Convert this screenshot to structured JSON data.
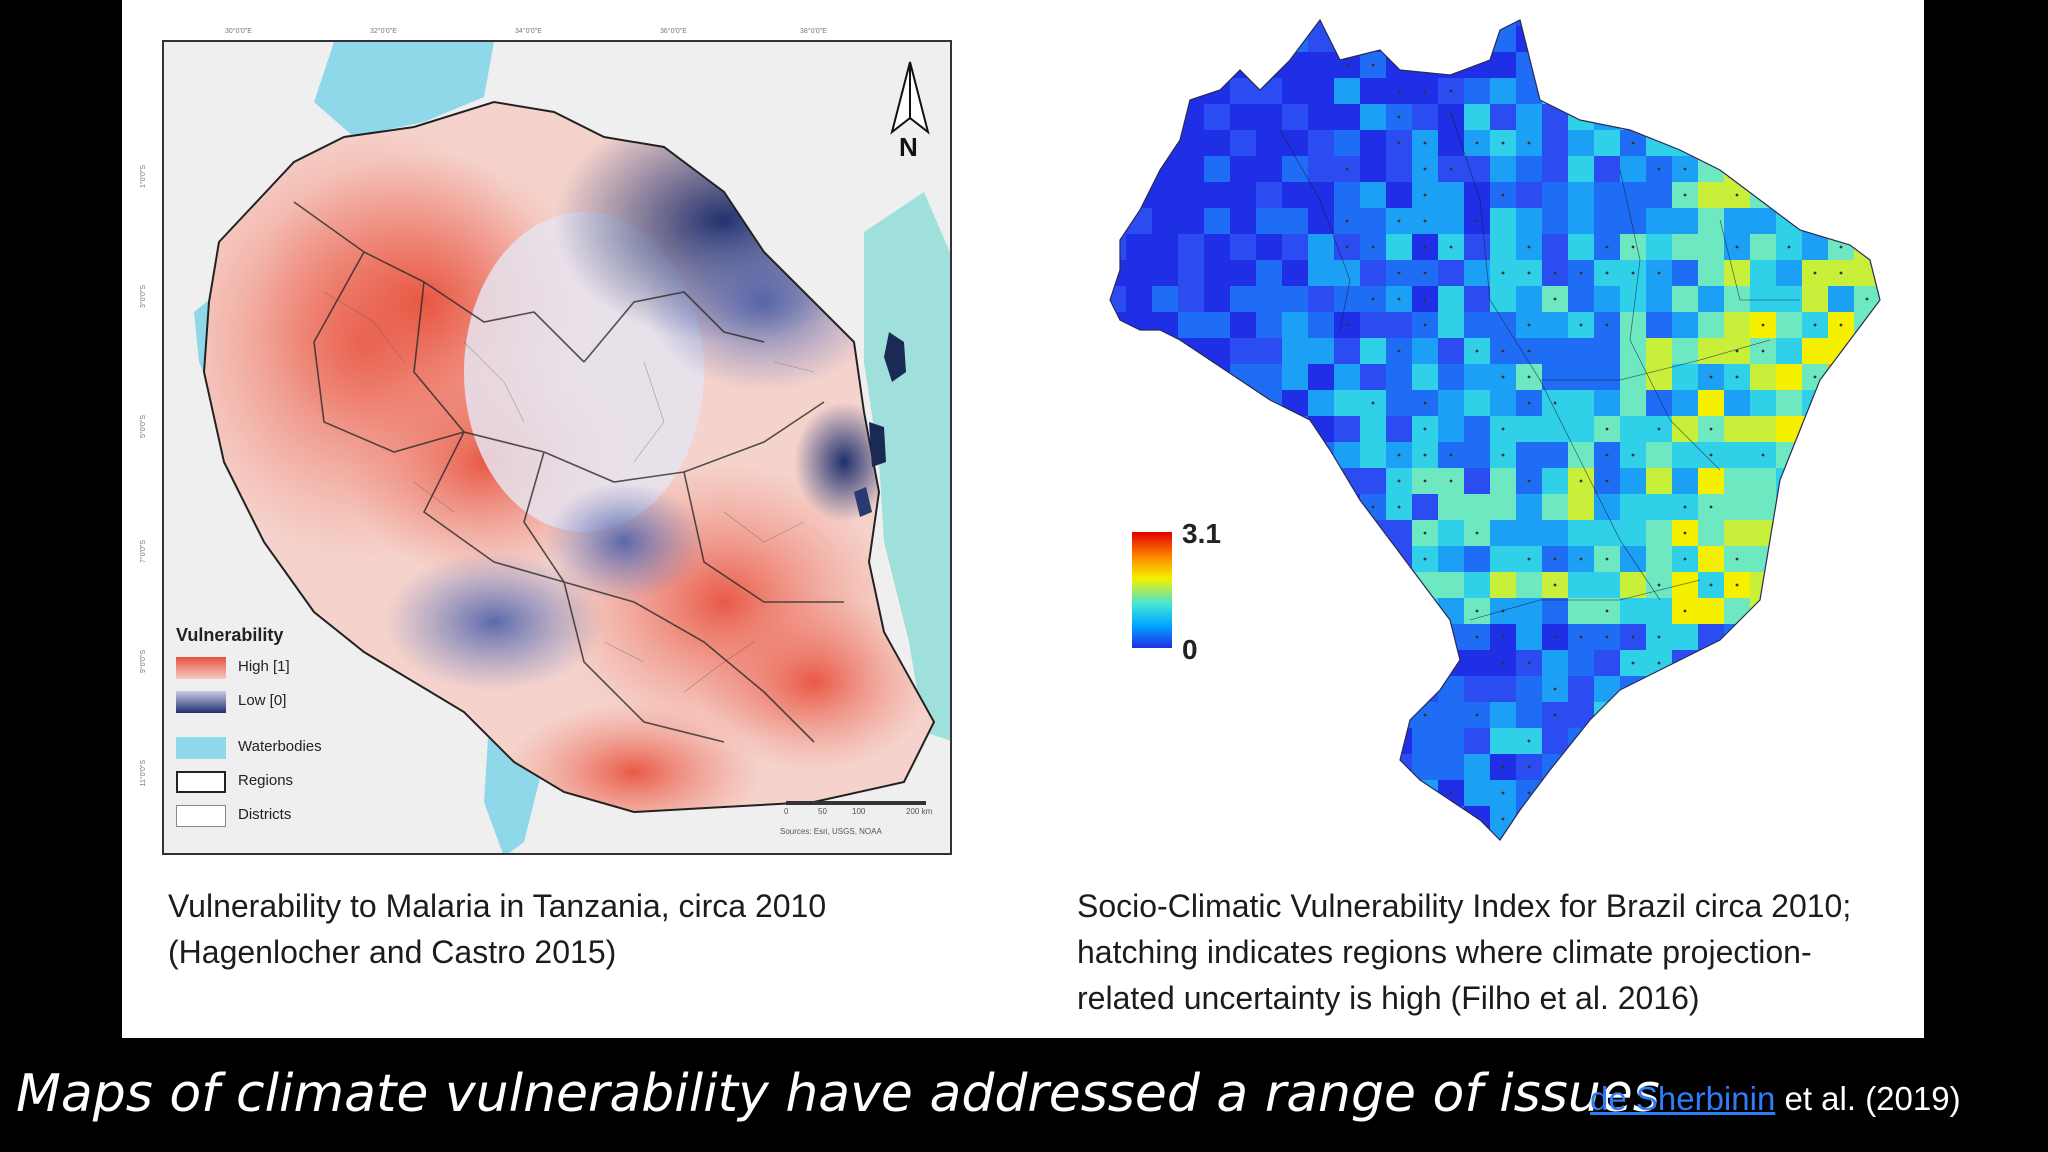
{
  "left_map": {
    "legend": {
      "title": "Vulnerability",
      "high_label": "High [1]",
      "low_label": "Low [0]",
      "waterbodies_label": "Waterbodies",
      "regions_label": "Regions",
      "districts_label": "Districts"
    },
    "north_label": "N",
    "scale_labels": [
      "0",
      "50",
      "100",
      "200 km"
    ],
    "source_note": "Sources: Esri, USGS, NOAA",
    "lon_ticks": [
      "30°0'0\"E",
      "32°0'0\"E",
      "34°0'0\"E",
      "36°0'0\"E",
      "38°0'0\"E"
    ],
    "lat_ticks": [
      "1°0'0\"S",
      "3°0'0\"S",
      "5°0'0\"S",
      "7°0'0\"S",
      "9°0'0\"S",
      "11°0'0\"S"
    ],
    "caption_line1": "Vulnerability to Malaria in Tanzania, circa 2010",
    "caption_line2": "(Hagenlocher and Castro 2015)",
    "colors": {
      "high": "#e8533f",
      "low": "#1f2f6e",
      "water": "#7fd3e6"
    }
  },
  "right_map": {
    "colorbar_max": "3.1",
    "colorbar_min": "0",
    "caption_line1": "Socio-Climatic Vulnerability Index for Brazil circa 2010;",
    "caption_line2": "hatching indicates regions where climate projection-",
    "caption_line3": "related uncertainty is high (Filho et al. 2016)"
  },
  "footer": {
    "title": "Maps of climate vulnerability have addressed a range of issues",
    "citation_link": "de Sherbinin",
    "citation_rest": " et al. (2019)"
  }
}
